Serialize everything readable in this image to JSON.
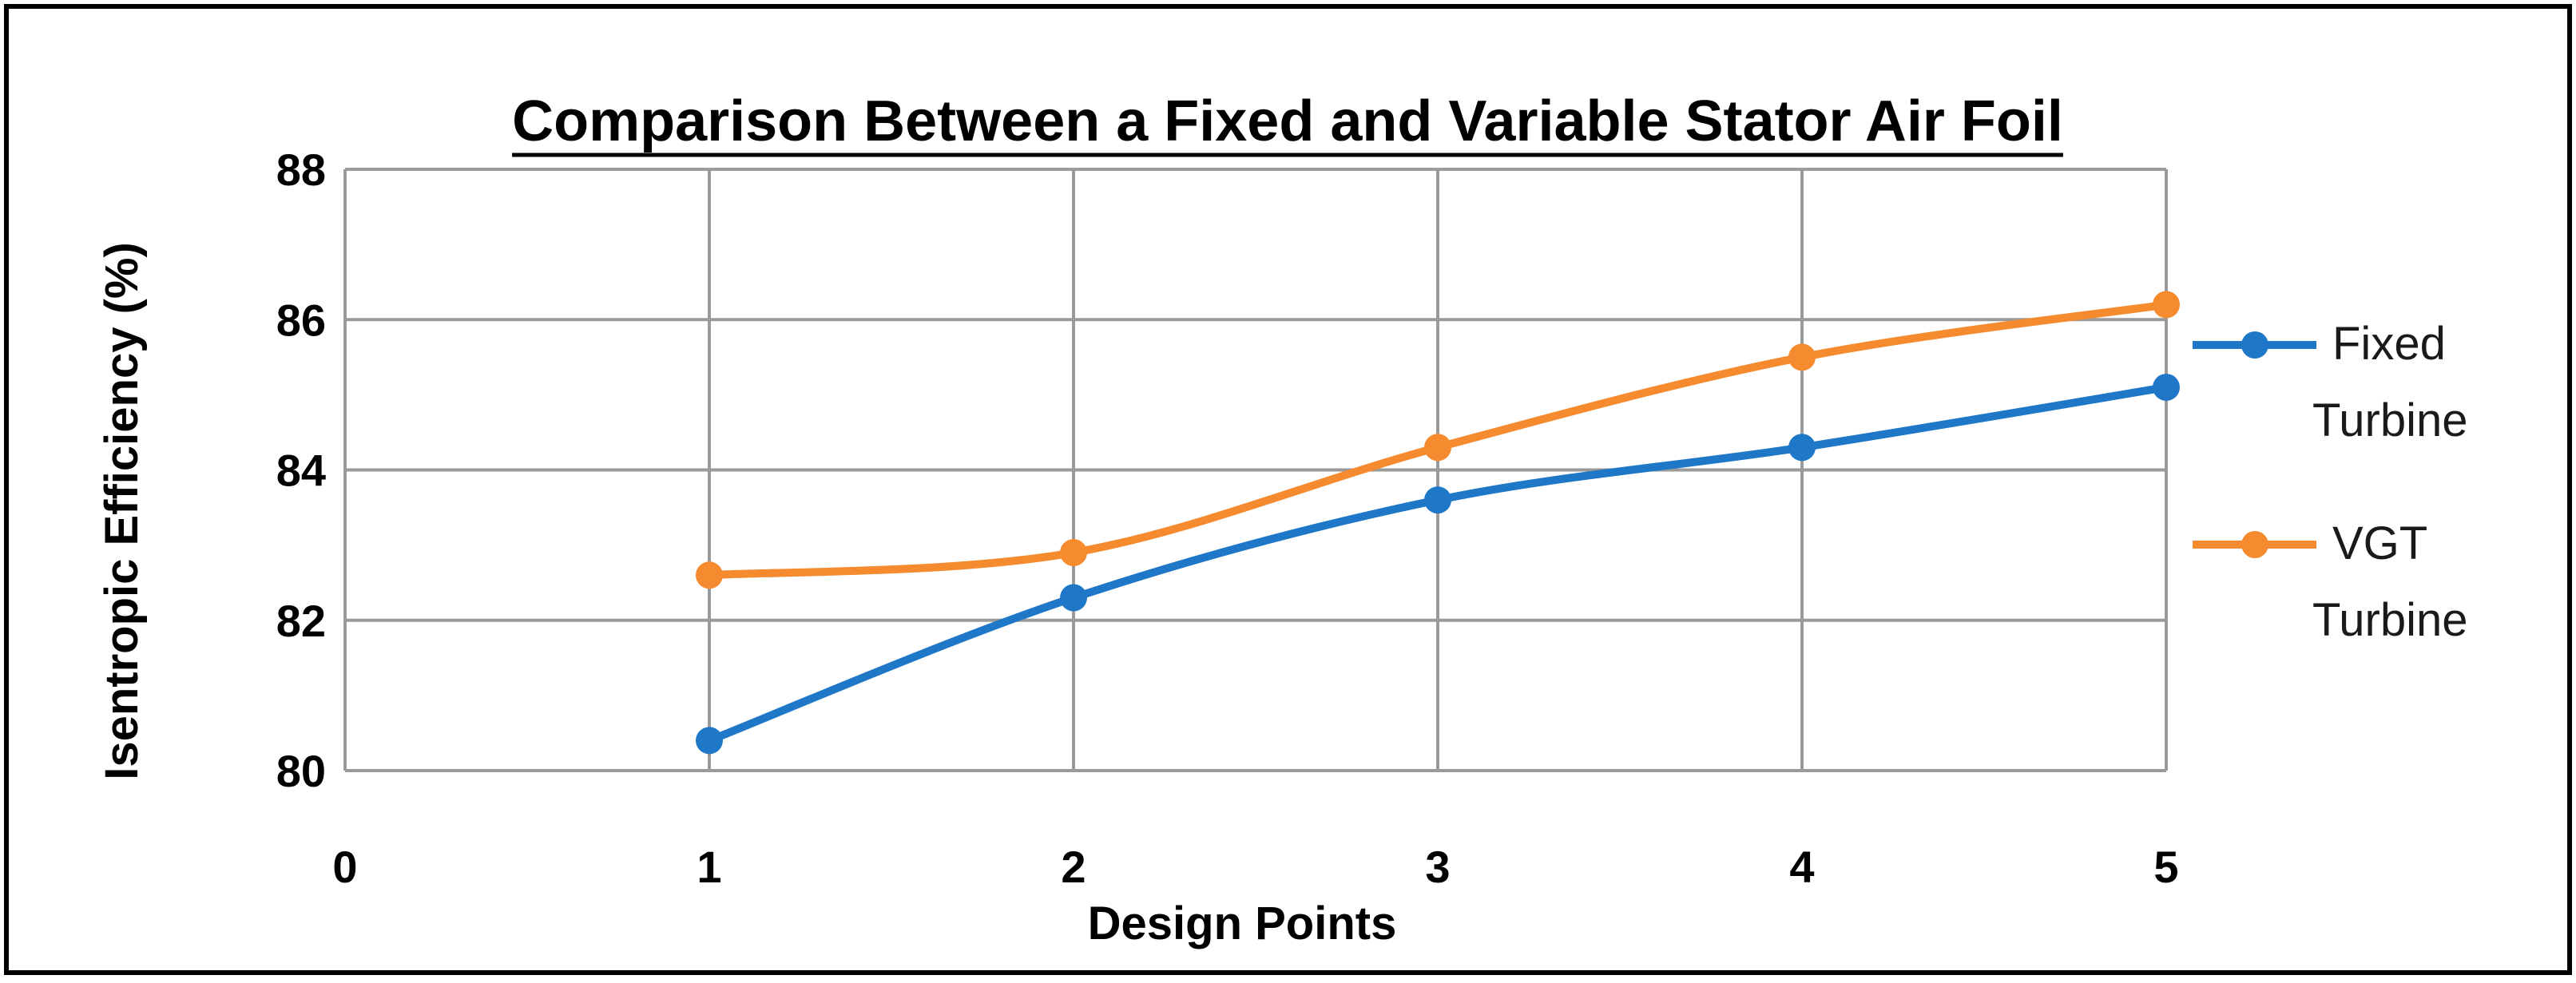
{
  "chart_data": {
    "type": "line",
    "title": "Comparison Between a Fixed and Variable Stator Air Foil",
    "xlabel": "Design Points",
    "ylabel": "Isentropic Efficiency (%)",
    "xlim": [
      0,
      5
    ],
    "ylim": [
      80,
      88
    ],
    "x_ticks": [
      "0",
      "1",
      "2",
      "3",
      "4",
      "5"
    ],
    "y_ticks": [
      "80",
      "82",
      "84",
      "86",
      "88"
    ],
    "grid": true,
    "legend_position": "right",
    "x": [
      1,
      2,
      3,
      4,
      5
    ],
    "series": [
      {
        "name_lines": [
          "Fixed",
          "Turbine"
        ],
        "color": "#1f77c8",
        "values": [
          80.4,
          82.3,
          83.6,
          84.3,
          85.1
        ]
      },
      {
        "name_lines": [
          "VGT",
          "Turbine"
        ],
        "color": "#f58a2e",
        "values": [
          82.6,
          82.9,
          84.3,
          85.5,
          86.2
        ]
      }
    ]
  }
}
